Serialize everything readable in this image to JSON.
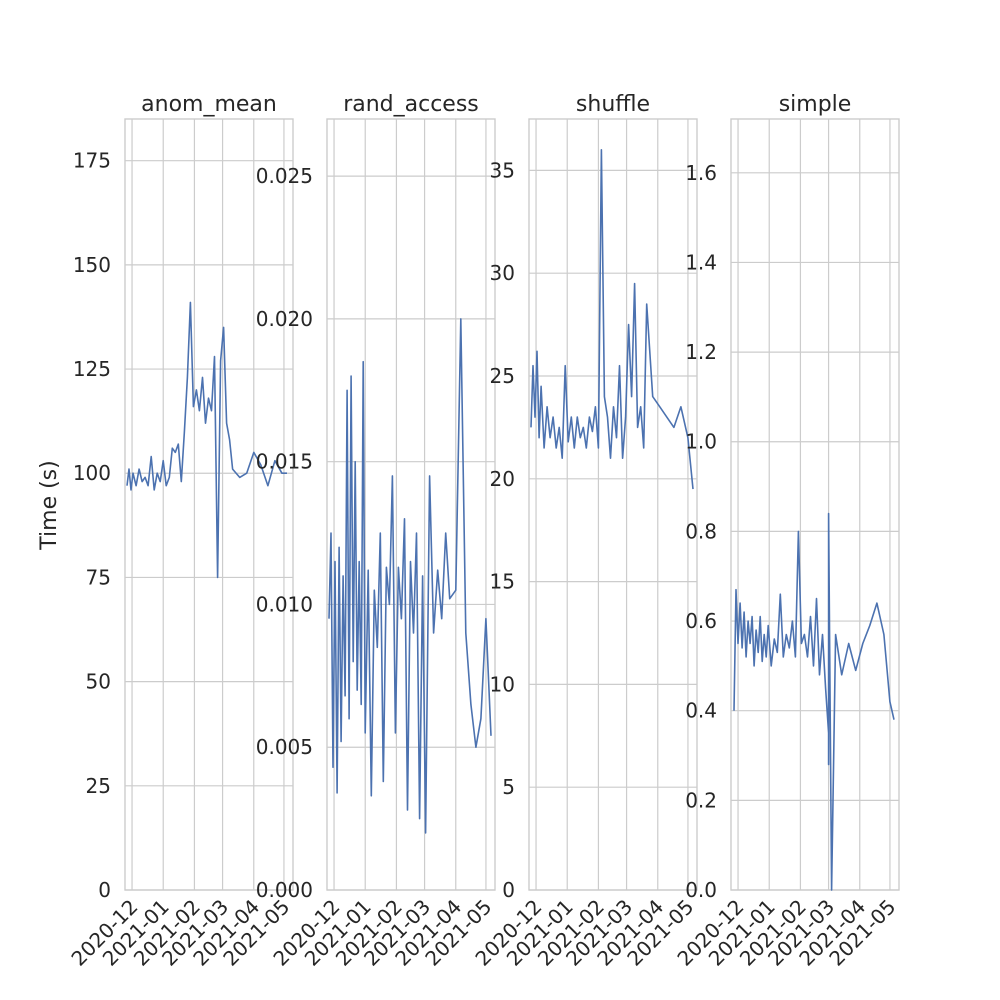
{
  "figure": {
    "ylabel": "Time (s)",
    "line_color": "#4c72b0",
    "grid_color": "#cccccc"
  },
  "chart_data": [
    {
      "type": "line",
      "title": "anom_mean",
      "ylabel": "Time (s)",
      "ylim": [
        0,
        185
      ],
      "yticks": [
        0,
        25,
        50,
        75,
        100,
        125,
        150,
        175
      ],
      "xlim": [
        "2020-11-24",
        "2021-05-10"
      ],
      "xticks": [
        "2020-12",
        "2021-01",
        "2021-02",
        "2021-03",
        "2021-04",
        "2021-05"
      ],
      "grid": true,
      "x": [
        "2020-11-26",
        "2020-11-28",
        "2020-11-30",
        "2020-12-02",
        "2020-12-05",
        "2020-12-08",
        "2020-12-11",
        "2020-12-14",
        "2020-12-17",
        "2020-12-20",
        "2020-12-23",
        "2020-12-26",
        "2020-12-29",
        "2021-01-01",
        "2021-01-04",
        "2021-01-07",
        "2021-01-10",
        "2021-01-13",
        "2021-01-16",
        "2021-01-19",
        "2021-01-22",
        "2021-01-25",
        "2021-01-28",
        "2021-01-31",
        "2021-02-03",
        "2021-02-06",
        "2021-02-09",
        "2021-02-12",
        "2021-02-15",
        "2021-02-18",
        "2021-02-21",
        "2021-02-24",
        "2021-02-27",
        "2021-03-02",
        "2021-03-05",
        "2021-03-08",
        "2021-03-11",
        "2021-03-18",
        "2021-03-25",
        "2021-04-01",
        "2021-04-08",
        "2021-04-15",
        "2021-04-22",
        "2021-04-29",
        "2021-05-04"
      ],
      "y": [
        97,
        101,
        96,
        100,
        97,
        101,
        98,
        99,
        97,
        104,
        96,
        100,
        98,
        103,
        97,
        99,
        106,
        105,
        107,
        98,
        110,
        123,
        141,
        116,
        120,
        115,
        123,
        112,
        118,
        115,
        128,
        75,
        127,
        135,
        112,
        108,
        101,
        99,
        100,
        105,
        102,
        97,
        103,
        100,
        100
      ]
    },
    {
      "type": "line",
      "title": "rand_access",
      "ylim": [
        0.0,
        0.027
      ],
      "yticks": [
        0.0,
        0.005,
        0.01,
        0.015,
        0.02,
        0.025
      ],
      "ytick_labels": [
        "0.000",
        "0.005",
        "0.010",
        "0.015",
        "0.020",
        "0.025"
      ],
      "xlim": [
        "2020-11-24",
        "2021-05-10"
      ],
      "xticks": [
        "2020-12",
        "2021-01",
        "2021-02",
        "2021-03",
        "2021-04",
        "2021-05"
      ],
      "grid": true,
      "x": [
        "2020-11-26",
        "2020-11-28",
        "2020-11-30",
        "2020-12-02",
        "2020-12-04",
        "2020-12-06",
        "2020-12-08",
        "2020-12-10",
        "2020-12-12",
        "2020-12-14",
        "2020-12-16",
        "2020-12-18",
        "2020-12-20",
        "2020-12-22",
        "2020-12-24",
        "2020-12-26",
        "2020-12-28",
        "2020-12-30",
        "2021-01-01",
        "2021-01-04",
        "2021-01-07",
        "2021-01-10",
        "2021-01-13",
        "2021-01-16",
        "2021-01-19",
        "2021-01-22",
        "2021-01-25",
        "2021-01-28",
        "2021-01-31",
        "2021-02-03",
        "2021-02-06",
        "2021-02-09",
        "2021-02-12",
        "2021-02-15",
        "2021-02-18",
        "2021-02-21",
        "2021-02-24",
        "2021-02-27",
        "2021-03-02",
        "2021-03-06",
        "2021-03-10",
        "2021-03-14",
        "2021-03-18",
        "2021-03-22",
        "2021-03-26",
        "2021-04-01",
        "2021-04-06",
        "2021-04-11",
        "2021-04-16",
        "2021-04-21",
        "2021-04-26",
        "2021-05-01",
        "2021-05-06"
      ],
      "y": [
        0.0095,
        0.0125,
        0.0043,
        0.0115,
        0.0034,
        0.012,
        0.0052,
        0.011,
        0.0068,
        0.0175,
        0.006,
        0.018,
        0.008,
        0.015,
        0.007,
        0.0115,
        0.0065,
        0.0185,
        0.0055,
        0.0112,
        0.0033,
        0.0105,
        0.0085,
        0.0125,
        0.0038,
        0.0113,
        0.01,
        0.0145,
        0.0055,
        0.0113,
        0.0095,
        0.013,
        0.0028,
        0.0115,
        0.009,
        0.0125,
        0.0025,
        0.011,
        0.002,
        0.0145,
        0.009,
        0.0112,
        0.0095,
        0.0125,
        0.0102,
        0.0105,
        0.02,
        0.009,
        0.0065,
        0.005,
        0.006,
        0.0095,
        0.0054
      ]
    },
    {
      "type": "line",
      "title": "shuffle",
      "ylim": [
        0,
        37.5
      ],
      "yticks": [
        0,
        5,
        10,
        15,
        20,
        25,
        30,
        35
      ],
      "xlim": [
        "2020-11-24",
        "2021-05-10"
      ],
      "xticks": [
        "2020-12",
        "2021-01",
        "2021-02",
        "2021-03",
        "2021-04",
        "2021-05"
      ],
      "grid": true,
      "x": [
        "2020-11-26",
        "2020-11-28",
        "2020-11-30",
        "2020-12-02",
        "2020-12-04",
        "2020-12-06",
        "2020-12-09",
        "2020-12-12",
        "2020-12-15",
        "2020-12-18",
        "2020-12-21",
        "2020-12-24",
        "2020-12-27",
        "2020-12-30",
        "2021-01-02",
        "2021-01-05",
        "2021-01-08",
        "2021-01-11",
        "2021-01-14",
        "2021-01-17",
        "2021-01-20",
        "2021-01-23",
        "2021-01-26",
        "2021-01-29",
        "2021-02-01",
        "2021-02-04",
        "2021-02-07",
        "2021-02-10",
        "2021-02-13",
        "2021-02-16",
        "2021-02-19",
        "2021-02-22",
        "2021-02-25",
        "2021-02-28",
        "2021-03-03",
        "2021-03-06",
        "2021-03-09",
        "2021-03-12",
        "2021-03-15",
        "2021-03-18",
        "2021-03-21",
        "2021-03-27",
        "2021-04-03",
        "2021-04-10",
        "2021-04-17",
        "2021-04-24",
        "2021-05-01",
        "2021-05-06"
      ],
      "y": [
        22.5,
        25.5,
        23.0,
        26.2,
        22.0,
        24.5,
        21.5,
        23.5,
        22.0,
        23.0,
        21.5,
        22.5,
        21.0,
        25.5,
        21.8,
        23.0,
        21.5,
        23.0,
        22.0,
        22.5,
        21.5,
        23.0,
        22.3,
        23.5,
        21.5,
        36.0,
        24.0,
        23.0,
        21.0,
        23.5,
        22.0,
        25.5,
        21.0,
        23.0,
        27.5,
        24.0,
        29.5,
        22.5,
        23.5,
        21.5,
        28.5,
        24.0,
        23.5,
        23.0,
        22.5,
        23.5,
        22.0,
        19.5
      ]
    },
    {
      "type": "line",
      "title": "simple",
      "ylim": [
        0,
        1.72
      ],
      "yticks": [
        0.0,
        0.2,
        0.4,
        0.6,
        0.8,
        1.0,
        1.2,
        1.4,
        1.6
      ],
      "ytick_labels": [
        "0.0",
        "0.2",
        "0.4",
        "0.6",
        "0.8",
        "1.0",
        "1.2",
        "1.4",
        "1.6"
      ],
      "xlim": [
        "2020-11-24",
        "2021-05-10"
      ],
      "xticks": [
        "2020-12",
        "2021-01",
        "2021-02",
        "2021-03",
        "2021-04",
        "2021-05"
      ],
      "grid": true,
      "x": [
        "2020-11-27",
        "2020-11-29",
        "2020-12-01",
        "2020-12-03",
        "2020-12-05",
        "2020-12-07",
        "2020-12-09",
        "2020-12-11",
        "2020-12-13",
        "2020-12-15",
        "2020-12-17",
        "2020-12-19",
        "2020-12-21",
        "2020-12-23",
        "2020-12-25",
        "2020-12-27",
        "2020-12-29",
        "2020-12-31",
        "2021-01-03",
        "2021-01-06",
        "2021-01-09",
        "2021-01-12",
        "2021-01-15",
        "2021-01-18",
        "2021-01-21",
        "2021-01-24",
        "2021-01-27",
        "2021-01-30",
        "2021-02-02",
        "2021-02-05",
        "2021-02-08",
        "2021-02-11",
        "2021-02-14",
        "2021-02-17",
        "2021-02-20",
        "2021-02-23",
        "2021-02-26",
        "2021-03-01",
        "2021-03-01",
        "2021-03-01",
        "2021-03-04",
        "2021-03-08",
        "2021-03-14",
        "2021-03-21",
        "2021-03-28",
        "2021-04-04",
        "2021-04-11",
        "2021-04-18",
        "2021-04-25",
        "2021-05-01",
        "2021-05-05"
      ],
      "y": [
        0.4,
        0.67,
        0.55,
        0.64,
        0.54,
        0.62,
        0.52,
        0.6,
        0.55,
        0.61,
        0.5,
        0.58,
        0.53,
        0.61,
        0.51,
        0.57,
        0.52,
        0.59,
        0.5,
        0.56,
        0.53,
        0.66,
        0.52,
        0.57,
        0.54,
        0.6,
        0.52,
        0.8,
        0.55,
        0.57,
        0.52,
        0.61,
        0.5,
        0.65,
        0.48,
        0.57,
        0.45,
        0.35,
        0.28,
        0.84,
        0.0,
        0.57,
        0.48,
        0.55,
        0.49,
        0.55,
        0.59,
        0.64,
        0.57,
        0.42,
        0.38
      ]
    }
  ]
}
